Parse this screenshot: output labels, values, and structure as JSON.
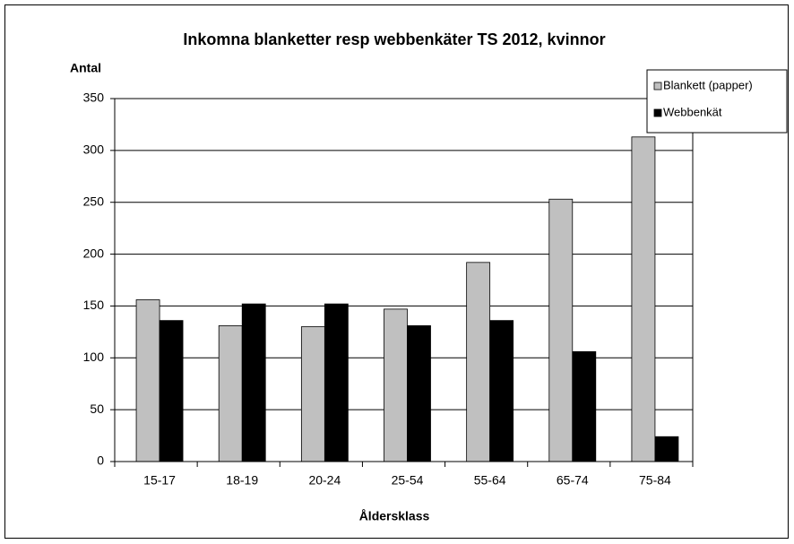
{
  "chart_data": {
    "type": "bar",
    "title": "Inkomna blanketter resp webbenkäter TS 2012, kvinnor",
    "y_label": "Antal",
    "x_label": "Åldersklass",
    "categories": [
      "15-17",
      "18-19",
      "20-24",
      "25-54",
      "55-64",
      "65-74",
      "75-84"
    ],
    "series": [
      {
        "name": "Blankett (papper)",
        "color": "#c0c0c0",
        "values": [
          156,
          131,
          130,
          147,
          192,
          253,
          313
        ]
      },
      {
        "name": "Webbenkät",
        "color": "#000000",
        "values": [
          136,
          152,
          152,
          131,
          136,
          106,
          24
        ]
      }
    ],
    "ylim": [
      0,
      350
    ],
    "yticks": [
      0,
      50,
      100,
      150,
      200,
      250,
      300,
      350
    ],
    "grid": true,
    "legend": "top-right"
  }
}
